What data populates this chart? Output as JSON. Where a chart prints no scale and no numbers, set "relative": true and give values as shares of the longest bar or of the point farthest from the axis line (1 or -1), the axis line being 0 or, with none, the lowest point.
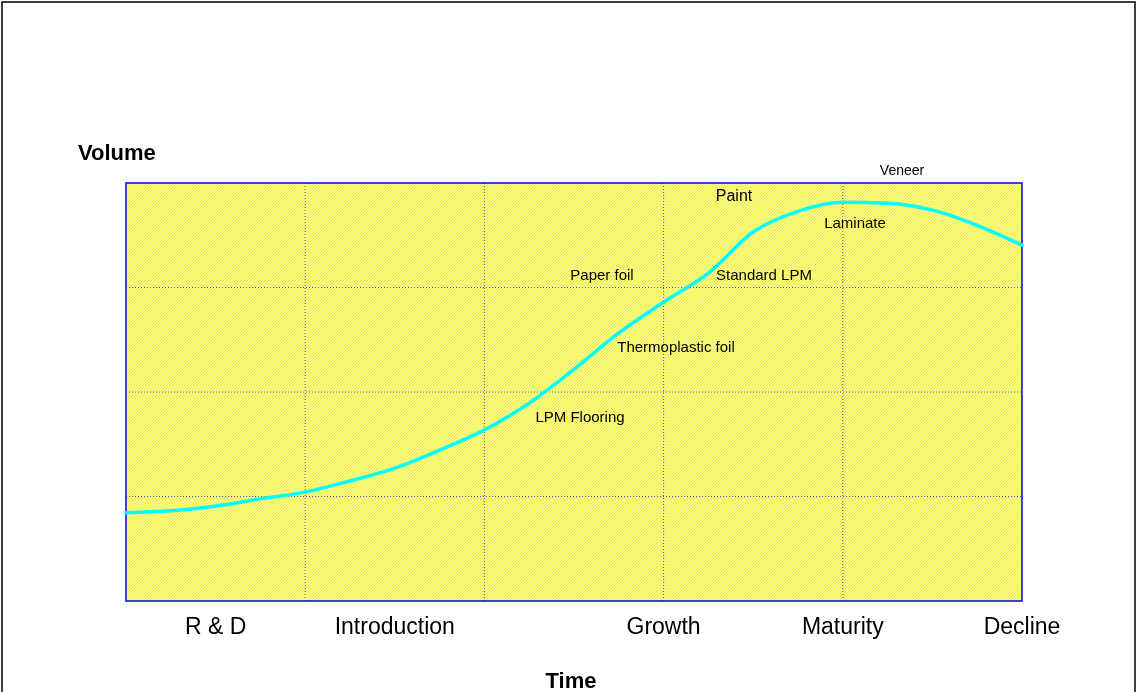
{
  "chart_data": {
    "type": "line",
    "relative": true,
    "xlabel": "Time",
    "ylabel": "Volume",
    "categories": [
      null,
      null,
      "R & D",
      null,
      null,
      null,
      "Introduction",
      null,
      null,
      null,
      null,
      null,
      "Growth",
      null,
      null,
      null,
      "Maturity",
      null,
      null,
      null,
      "Decline"
    ],
    "grid": true,
    "marker": "none",
    "line_style": "solid",
    "series": [
      {
        "color": "#00ffff",
        "values": [
          0.221,
          0.226,
          0.238,
          0.256,
          0.273,
          0.301,
          0.333,
          0.378,
          0.429,
          0.496,
          0.581,
          0.672,
          0.749,
          0.822,
          0.925,
          0.977,
          1,
          0.997,
          0.98,
          0.942,
          0.892
        ]
      }
    ],
    "annotations": [
      "Veneer",
      "Paint",
      "Laminate",
      "Paper foil",
      "Standard LPM",
      "Thermoplastic foil",
      "LPM Flooring"
    ]
  }
}
